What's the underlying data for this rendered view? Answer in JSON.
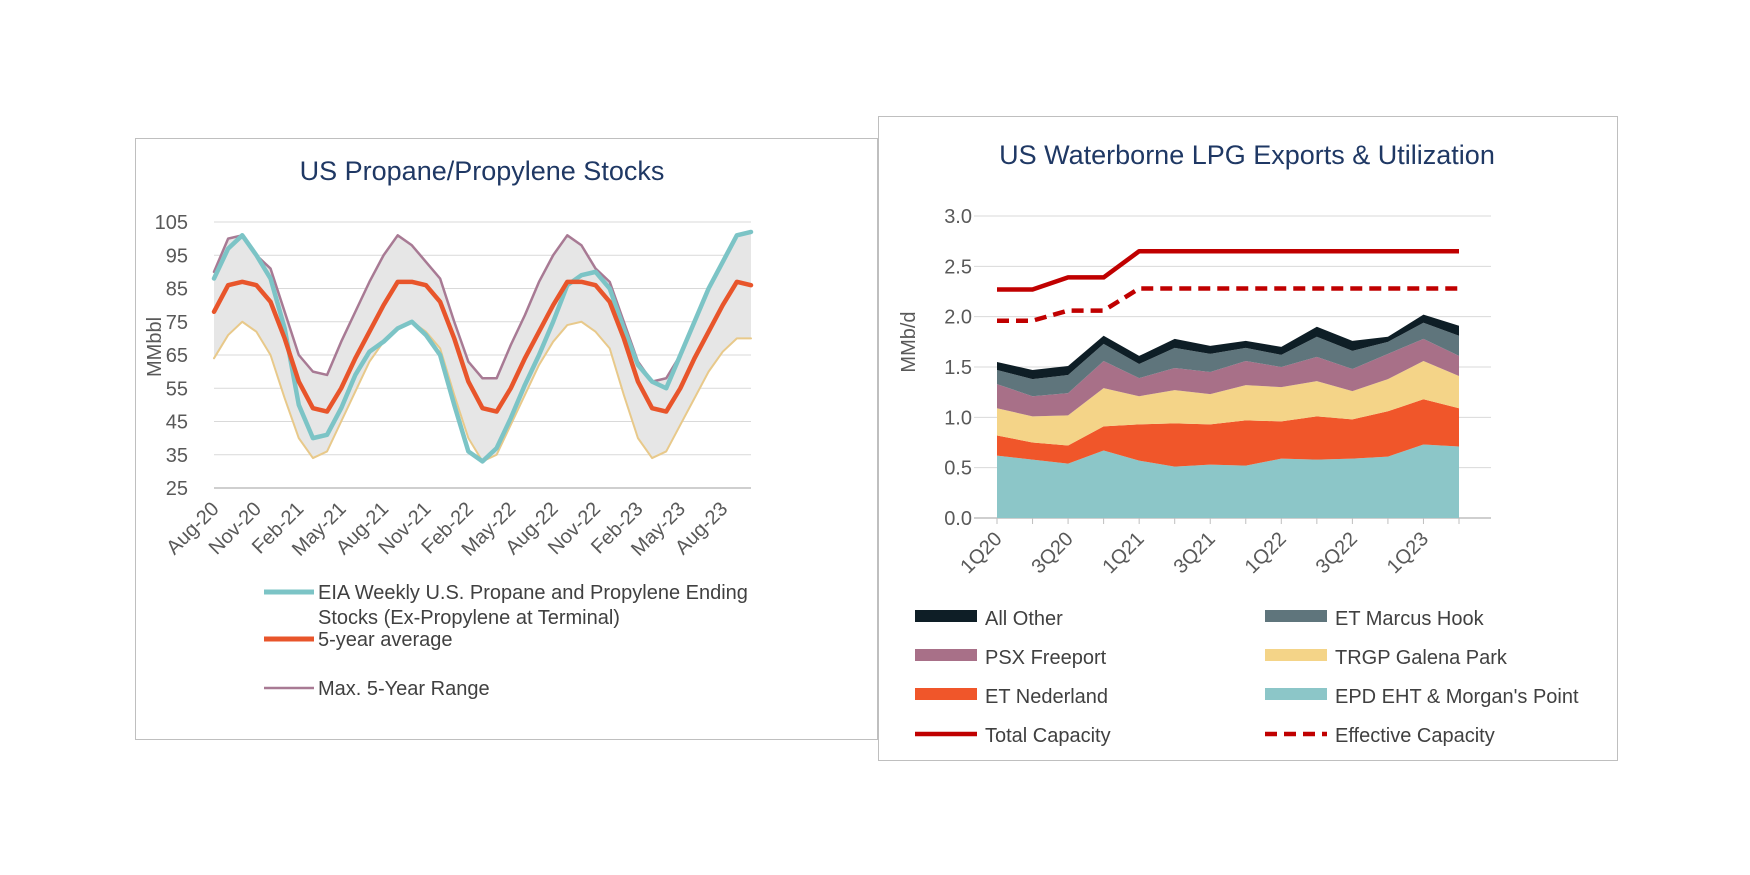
{
  "colors": {
    "eia": "#7cc4c6",
    "five_year_avg": "#e8552b",
    "max_range": "#a87a94",
    "min_range": "#e8c98a",
    "range_fill": "#e6e6e6",
    "all_other": "#0e1e26",
    "et_marcus_hook": "#5f757c",
    "psx_freeport": "#a87088",
    "trgp_galena_park": "#f4d488",
    "et_nederland": "#f0562a",
    "epd": "#8cc6c8",
    "total_capacity": "#c00000",
    "effective_capacity": "#c00000"
  },
  "chart_data": [
    {
      "type": "line",
      "title": "US Propane/Propylene Stocks",
      "ylabel": "MMbbl",
      "ylim": [
        25,
        105
      ],
      "yticks": [
        "105",
        "95",
        "85",
        "75",
        "65",
        "55",
        "45",
        "35",
        "25"
      ],
      "xtick_labels": [
        "Aug-20",
        "Nov-20",
        "Feb-21",
        "May-21",
        "Aug-21",
        "Nov-21",
        "Feb-22",
        "May-22",
        "Aug-22",
        "Nov-22",
        "Feb-23",
        "May-23",
        "Aug-23"
      ],
      "x": [
        "Aug-20",
        "Sep-20",
        "Oct-20",
        "Nov-20",
        "Dec-20",
        "Jan-21",
        "Feb-21",
        "Mar-21",
        "Apr-21",
        "May-21",
        "Jun-21",
        "Jul-21",
        "Aug-21",
        "Sep-21",
        "Oct-21",
        "Nov-21",
        "Dec-21",
        "Jan-22",
        "Feb-22",
        "Mar-22",
        "Apr-22",
        "May-22",
        "Jun-22",
        "Jul-22",
        "Aug-22",
        "Sep-22",
        "Oct-22",
        "Nov-22",
        "Dec-22",
        "Jan-23",
        "Feb-23",
        "Mar-23",
        "Apr-23",
        "May-23",
        "Jun-23",
        "Jul-23",
        "Aug-23",
        "Sep-23",
        "Oct-23"
      ],
      "band": {
        "upper": [
          90,
          100,
          101,
          95,
          91,
          78,
          65,
          60,
          59,
          69,
          78,
          87,
          95,
          101,
          98,
          93,
          88,
          75,
          63,
          58,
          58,
          68,
          77,
          87,
          95,
          101,
          98,
          91,
          87,
          75,
          63,
          57,
          58,
          65,
          75,
          85,
          93,
          101,
          102
        ],
        "lower": [
          64,
          71,
          75,
          72,
          65,
          52,
          40,
          34,
          36,
          45,
          54,
          63,
          69,
          73,
          75,
          72,
          67,
          53,
          40,
          33,
          35,
          44,
          53,
          62,
          69,
          74,
          75,
          72,
          67,
          53,
          40,
          34,
          36,
          44,
          52,
          60,
          66,
          70,
          70
        ]
      },
      "series": [
        {
          "name": "EIA Weekly U.S. Propane and Propylene Ending Stocks (Ex-Propylene at Terminal)",
          "values": [
            88,
            97,
            101,
            95,
            88,
            73,
            50,
            40,
            41,
            49,
            59,
            66,
            69,
            73,
            75,
            71,
            65,
            50,
            36,
            33,
            37,
            46,
            56,
            65,
            75,
            86,
            89,
            90,
            85,
            73,
            62,
            57,
            55,
            65,
            75,
            85,
            93,
            101,
            102
          ],
          "color_key": "eia"
        },
        {
          "name": "5-year average",
          "values": [
            78,
            86,
            87,
            86,
            81,
            70,
            57,
            49,
            48,
            55,
            64,
            72,
            80,
            87,
            87,
            86,
            81,
            70,
            57,
            49,
            48,
            55,
            64,
            72,
            80,
            87,
            87,
            86,
            81,
            70,
            57,
            49,
            48,
            55,
            64,
            72,
            80,
            87,
            86
          ],
          "color_key": "five_year_avg"
        }
      ],
      "legend": [
        {
          "label": "EIA Weekly U.S. Propane and Propylene Ending",
          "label_line2": "Stocks (Ex-Propylene at Terminal)",
          "color_key": "eia"
        },
        {
          "label": "5-year average",
          "color_key": "five_year_avg"
        },
        {
          "label": "Max. 5-Year Range",
          "color_key": "max_range"
        }
      ],
      "grid": true,
      "legend_position": "bottom"
    },
    {
      "type": "area",
      "title": "US Waterborne LPG Exports & Utilization",
      "ylabel": "MMb/d",
      "ylim": [
        0,
        3.0
      ],
      "yticks": [
        "3.0",
        "2.5",
        "2.0",
        "1.5",
        "1.0",
        "0.5",
        "0.0"
      ],
      "categories": [
        "1Q20",
        "2Q20",
        "3Q20",
        "4Q20",
        "1Q21",
        "2Q21",
        "3Q21",
        "4Q21",
        "1Q22",
        "2Q22",
        "3Q22",
        "4Q22",
        "1Q23",
        "2Q23"
      ],
      "xtick_labels": [
        "1Q20",
        "3Q20",
        "1Q21",
        "3Q21",
        "1Q22",
        "3Q22",
        "1Q23"
      ],
      "stacked_series": [
        {
          "name": "EPD EHT & Morgan's Point",
          "color_key": "epd",
          "values": [
            0.62,
            0.58,
            0.54,
            0.67,
            0.57,
            0.51,
            0.53,
            0.52,
            0.59,
            0.58,
            0.59,
            0.61,
            0.73,
            0.71
          ]
        },
        {
          "name": "ET Nederland",
          "color_key": "et_nederland",
          "values": [
            0.2,
            0.17,
            0.18,
            0.24,
            0.36,
            0.43,
            0.4,
            0.45,
            0.37,
            0.43,
            0.39,
            0.45,
            0.45,
            0.38
          ]
        },
        {
          "name": "TRGP Galena Park",
          "color_key": "trgp_galena_park",
          "values": [
            0.27,
            0.26,
            0.3,
            0.38,
            0.28,
            0.33,
            0.3,
            0.35,
            0.34,
            0.35,
            0.28,
            0.32,
            0.38,
            0.32
          ]
        },
        {
          "name": "PSX Freeport",
          "color_key": "psx_freeport",
          "values": [
            0.24,
            0.2,
            0.22,
            0.27,
            0.18,
            0.22,
            0.22,
            0.24,
            0.2,
            0.24,
            0.22,
            0.25,
            0.22,
            0.2
          ]
        },
        {
          "name": "ET Marcus Hook",
          "color_key": "et_marcus_hook",
          "values": [
            0.14,
            0.17,
            0.18,
            0.17,
            0.14,
            0.2,
            0.18,
            0.13,
            0.12,
            0.2,
            0.18,
            0.12,
            0.16,
            0.2
          ]
        },
        {
          "name": "All Other",
          "color_key": "all_other",
          "values": [
            0.08,
            0.09,
            0.09,
            0.08,
            0.08,
            0.09,
            0.08,
            0.07,
            0.08,
            0.1,
            0.1,
            0.05,
            0.08,
            0.1
          ]
        }
      ],
      "lines": [
        {
          "name": "Total Capacity",
          "color_key": "total_capacity",
          "dashed": false,
          "values": [
            2.27,
            2.27,
            2.39,
            2.39,
            2.65,
            2.65,
            2.65,
            2.65,
            2.65,
            2.65,
            2.65,
            2.65,
            2.65,
            2.65
          ]
        },
        {
          "name": "Effective Capacity",
          "color_key": "effective_capacity",
          "dashed": true,
          "values": [
            1.96,
            1.96,
            2.06,
            2.06,
            2.28,
            2.28,
            2.28,
            2.28,
            2.28,
            2.28,
            2.28,
            2.28,
            2.28,
            2.28
          ]
        }
      ],
      "legend": [
        {
          "label": "All Other",
          "color_key": "all_other",
          "kind": "box"
        },
        {
          "label": "ET Marcus Hook",
          "color_key": "et_marcus_hook",
          "kind": "box"
        },
        {
          "label": "PSX Freeport",
          "color_key": "psx_freeport",
          "kind": "box"
        },
        {
          "label": "TRGP Galena Park",
          "color_key": "trgp_galena_park",
          "kind": "box"
        },
        {
          "label": "ET Nederland",
          "color_key": "et_nederland",
          "kind": "box"
        },
        {
          "label": "EPD EHT & Morgan's Point",
          "color_key": "epd",
          "kind": "box"
        },
        {
          "label": "Total Capacity",
          "color_key": "total_capacity",
          "kind": "line"
        },
        {
          "label": "Effective Capacity",
          "color_key": "effective_capacity",
          "kind": "dash"
        }
      ],
      "grid": true,
      "legend_position": "bottom"
    }
  ]
}
